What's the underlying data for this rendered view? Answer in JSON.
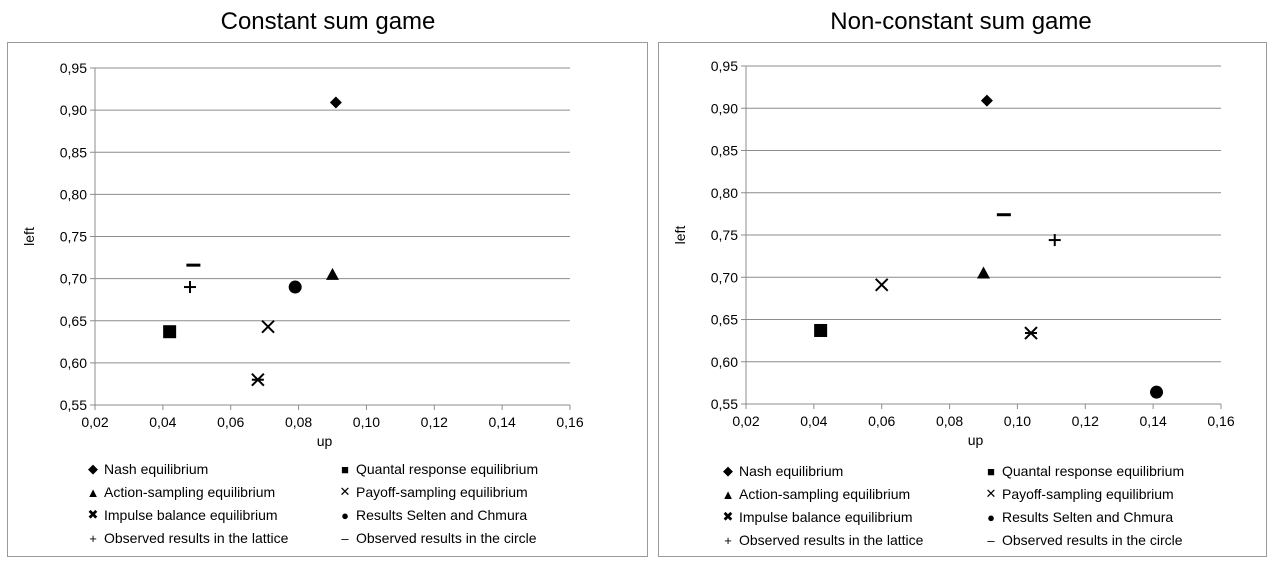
{
  "chart_data": [
    {
      "type": "scatter",
      "title": "Constant sum game",
      "xlabel": "up",
      "ylabel": "left",
      "xlim": [
        0.02,
        0.16
      ],
      "ylim": [
        0.55,
        0.95
      ],
      "xticks": [
        "0,02",
        "0,04",
        "0,06",
        "0,08",
        "0,10",
        "0,12",
        "0,14",
        "0,16"
      ],
      "yticks": [
        "0,55",
        "0,60",
        "0,65",
        "0,70",
        "0,75",
        "0,80",
        "0,85",
        "0,90",
        "0,95"
      ],
      "grid": "horizontal",
      "legend_position": "bottom",
      "series": [
        {
          "name": "Nash equilibrium",
          "marker": "diamond",
          "x": 0.091,
          "y": 0.909
        },
        {
          "name": "Quantal response equilibrium",
          "marker": "square",
          "x": 0.042,
          "y": 0.637
        },
        {
          "name": "Action-sampling equilibrium",
          "marker": "triangle",
          "x": 0.09,
          "y": 0.705
        },
        {
          "name": "Payoff-sampling equilibrium",
          "marker": "x",
          "x": 0.071,
          "y": 0.643
        },
        {
          "name": "Impulse balance equilibrium",
          "marker": "star",
          "x": 0.068,
          "y": 0.58
        },
        {
          "name": "Results Selten and Chmura",
          "marker": "circle",
          "x": 0.079,
          "y": 0.69
        },
        {
          "name": "Observed results in the lattice",
          "marker": "plus",
          "x": 0.048,
          "y": 0.69
        },
        {
          "name": "Observed results in the circle",
          "marker": "dash",
          "x": 0.049,
          "y": 0.716
        }
      ]
    },
    {
      "type": "scatter",
      "title": "Non-constant sum game",
      "xlabel": "up",
      "ylabel": "left",
      "xlim": [
        0.02,
        0.16
      ],
      "ylim": [
        0.55,
        0.95
      ],
      "xticks": [
        "0,02",
        "0,04",
        "0,06",
        "0,08",
        "0,10",
        "0,12",
        "0,14",
        "0,16"
      ],
      "yticks": [
        "0,55",
        "0,60",
        "0,65",
        "0,70",
        "0,75",
        "0,80",
        "0,85",
        "0,90",
        "0,95"
      ],
      "grid": "horizontal",
      "legend_position": "bottom",
      "series": [
        {
          "name": "Nash equilibrium",
          "marker": "diamond",
          "x": 0.091,
          "y": 0.909
        },
        {
          "name": "Quantal response equilibrium",
          "marker": "square",
          "x": 0.042,
          "y": 0.637
        },
        {
          "name": "Action-sampling equilibrium",
          "marker": "triangle",
          "x": 0.09,
          "y": 0.705
        },
        {
          "name": "Payoff-sampling equilibrium",
          "marker": "x",
          "x": 0.06,
          "y": 0.691
        },
        {
          "name": "Impulse balance equilibrium",
          "marker": "star",
          "x": 0.104,
          "y": 0.634
        },
        {
          "name": "Results Selten and Chmura",
          "marker": "circle",
          "x": 0.141,
          "y": 0.564
        },
        {
          "name": "Observed results in the lattice",
          "marker": "plus",
          "x": 0.111,
          "y": 0.744
        },
        {
          "name": "Observed results in the circle",
          "marker": "dash",
          "x": 0.096,
          "y": 0.774
        }
      ]
    }
  ],
  "legend_glyphs": {
    "diamond": "◆",
    "square": "■",
    "triangle": "▲",
    "x": "✕",
    "star": "✖",
    "circle": "●",
    "plus": "+",
    "dash": "–"
  }
}
